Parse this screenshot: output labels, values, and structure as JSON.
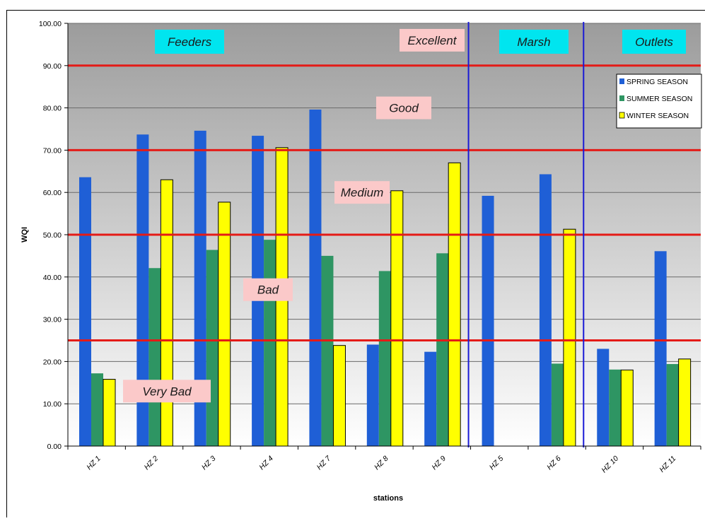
{
  "chart_data": {
    "type": "bar",
    "title": "",
    "xlabel": "stations",
    "ylabel": "WQI",
    "ylim": [
      0,
      100
    ],
    "ytick_step": 10,
    "grid": true,
    "legend_position": "top-right",
    "categories": [
      "HZ 1",
      "HZ 2",
      "HZ 3",
      "HZ 4",
      "HZ 7",
      "HZ 8",
      "HZ 9",
      "HZ 5",
      "HZ 6",
      "HZ 10",
      "HZ 11"
    ],
    "series": [
      {
        "name": "SPRING SEASON",
        "color": "#1f5fd6",
        "values": [
          63.6,
          73.7,
          74.6,
          73.4,
          79.6,
          24.0,
          22.3,
          59.2,
          64.3,
          23.0,
          46.1
        ]
      },
      {
        "name": "SUMMER SEASON",
        "color": "#2e9563",
        "values": [
          17.2,
          42.1,
          46.4,
          48.8,
          45.0,
          41.4,
          45.6,
          null,
          19.5,
          18.1,
          19.4
        ]
      },
      {
        "name": "WINTER SEASON",
        "color": "#ffff00",
        "values": [
          15.8,
          63.0,
          57.7,
          70.6,
          23.8,
          60.4,
          67.0,
          null,
          51.3,
          18.0,
          20.6
        ]
      }
    ],
    "threshold_lines": [
      {
        "value": 90,
        "color": "#e41b17"
      },
      {
        "value": 70,
        "color": "#e41b17"
      },
      {
        "value": 50,
        "color": "#e41b17"
      },
      {
        "value": 25,
        "color": "#e41b17"
      }
    ],
    "group_dividers_after_category": [
      6,
      8
    ],
    "zone_labels": [
      {
        "text": "Very Bad",
        "value": 13
      },
      {
        "text": "Bad",
        "value": 37
      },
      {
        "text": "Medium",
        "value": 60
      },
      {
        "text": "Good",
        "value": 80
      },
      {
        "text": "Excellent",
        "value": 96
      }
    ],
    "group_labels": [
      {
        "text": "Feeders"
      },
      {
        "text": "Marsh"
      },
      {
        "text": "Outlets"
      }
    ]
  }
}
